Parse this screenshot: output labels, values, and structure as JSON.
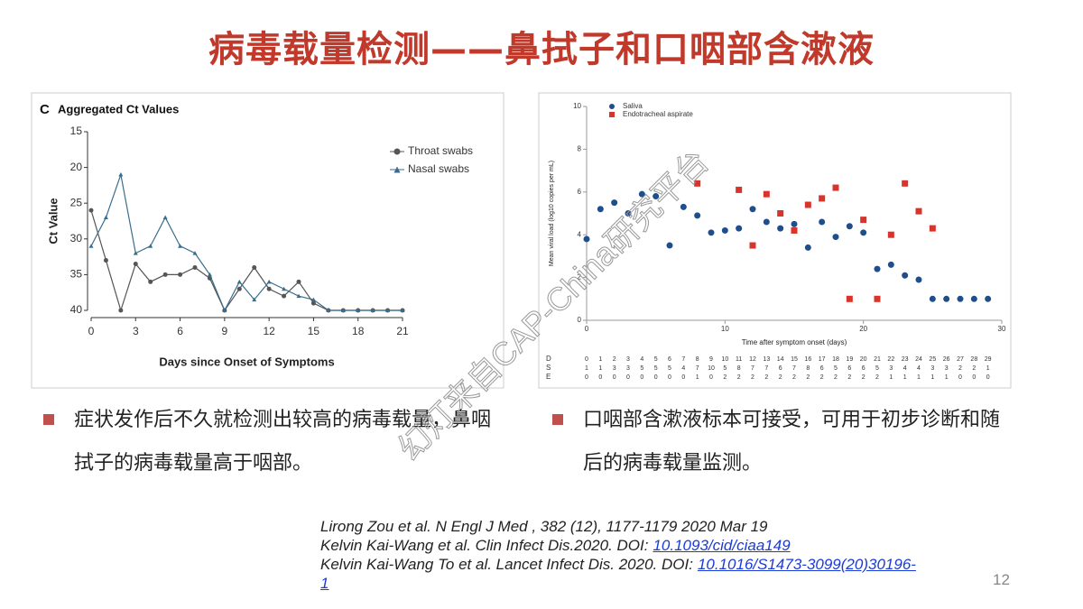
{
  "title": "病毒载量检测——鼻拭子和口咽部含漱液",
  "chart_data": [
    {
      "type": "line",
      "panel": "C",
      "title": "Aggregated Ct Values",
      "xlabel": "Days since Onset of Symptoms",
      "ylabel": "Ct Value",
      "x": [
        0,
        1,
        2,
        3,
        4,
        5,
        6,
        7,
        8,
        9,
        10,
        11,
        12,
        13,
        14,
        15,
        16,
        17,
        18,
        19,
        20,
        21
      ],
      "xlim": [
        0,
        21
      ],
      "xticks": [
        0,
        3,
        6,
        9,
        12,
        15,
        18,
        21
      ],
      "ylim": [
        40,
        15
      ],
      "yticks": [
        15,
        20,
        25,
        30,
        35,
        40
      ],
      "legend": "upper right",
      "series": [
        {
          "name": "Throat swabs",
          "color": "#555555",
          "marker": "circle",
          "values": [
            26,
            33,
            40,
            33.5,
            36,
            35,
            35,
            34,
            35.5,
            40,
            37,
            34,
            37,
            38,
            36,
            39,
            40,
            40,
            40,
            40,
            40,
            40
          ]
        },
        {
          "name": "Nasal swabs",
          "color": "#3a6d8c",
          "marker": "triangle",
          "values": [
            31,
            27,
            21,
            32,
            31,
            27,
            31,
            32,
            35,
            40,
            36,
            38.5,
            36,
            37,
            38,
            38.5,
            40,
            40,
            40,
            40,
            40,
            40
          ]
        }
      ]
    },
    {
      "type": "scatter",
      "xlabel": "Time after symptom onset (days)",
      "ylabel": "Mean viral load (log10 copies per mL)",
      "xlim": [
        0,
        30
      ],
      "xticks": [
        0,
        10,
        20,
        30
      ],
      "ylim": [
        0,
        10
      ],
      "yticks": [
        0,
        2,
        4,
        6,
        8,
        10
      ],
      "legend": "upper left",
      "series": [
        {
          "name": "Saliva",
          "color": "#1f4e8c",
          "marker": "circle",
          "x": [
            0,
            1,
            2,
            3,
            4,
            5,
            6,
            7,
            8,
            9,
            10,
            11,
            12,
            13,
            14,
            15,
            16,
            17,
            18,
            19,
            20,
            21,
            22,
            23,
            24,
            25,
            26,
            27,
            28,
            29
          ],
          "values": [
            3.8,
            5.2,
            5.5,
            5.0,
            5.9,
            5.8,
            3.5,
            5.3,
            4.9,
            4.1,
            4.2,
            4.3,
            5.2,
            4.6,
            4.3,
            4.5,
            3.4,
            4.6,
            3.9,
            4.4,
            4.1,
            2.4,
            2.6,
            2.1,
            1.9,
            1.0,
            1.0,
            1.0,
            1.0,
            1.0
          ]
        },
        {
          "name": "Endotracheal aspirate",
          "color": "#d9342b",
          "marker": "square",
          "x": [
            8,
            11,
            12,
            13,
            14,
            15,
            16,
            17,
            18,
            19,
            20,
            21,
            22,
            23,
            24,
            25
          ],
          "values": [
            6.4,
            6.1,
            3.5,
            5.9,
            5.0,
            4.2,
            5.4,
            5.7,
            6.2,
            1.0,
            4.7,
            1.0,
            4.0,
            6.4,
            5.1,
            4.3
          ]
        }
      ],
      "table": {
        "row_labels": [
          "D",
          "S",
          "E"
        ],
        "rows": [
          [
            0,
            1,
            2,
            3,
            4,
            5,
            6,
            7,
            8,
            9,
            10,
            11,
            12,
            13,
            14,
            15,
            16,
            17,
            18,
            19,
            20,
            21,
            22,
            23,
            24,
            25,
            26,
            27,
            28,
            29
          ],
          [
            1,
            1,
            3,
            3,
            5,
            5,
            5,
            4,
            7,
            10,
            5,
            8,
            7,
            7,
            6,
            7,
            8,
            6,
            5,
            6,
            6,
            5,
            3,
            4,
            4,
            3,
            3,
            2,
            2,
            1
          ],
          [
            0,
            0,
            0,
            0,
            0,
            0,
            0,
            0,
            1,
            0,
            2,
            2,
            2,
            2,
            2,
            2,
            2,
            2,
            2,
            2,
            2,
            2,
            1,
            1,
            1,
            1,
            1,
            0,
            0,
            0
          ]
        ]
      }
    }
  ],
  "bullets": [
    "症状发作后不久就检测出较高的病毒载量，鼻咽拭子的病毒载量高于咽部。",
    "口咽部含漱液标本可接受，可用于初步诊断和随后的病毒载量监测。"
  ],
  "references": [
    {
      "text": "Lirong Zou et al. N Engl J Med , 382 (12), 1177-1179  2020 Mar 19"
    },
    {
      "text": "Kelvin Kai-Wang et al. Clin Infect Dis.2020. DOI:",
      "link": "10.1093/cid/ciaa149"
    },
    {
      "text": "Kelvin Kai-Wang To et al. Lancet Infect Dis. 2020. DOI:",
      "link": "10.1016/S1473-3099(20)30196-1"
    }
  ],
  "page_number": "12",
  "watermark": "幻灯来自CAP-China研究平台"
}
